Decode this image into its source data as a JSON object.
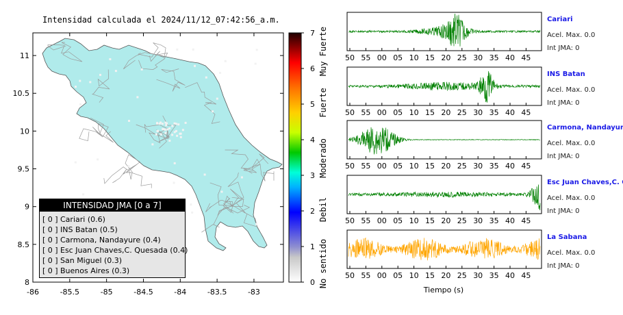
{
  "map": {
    "title": "Intensidad calculada el 2024/11/12_07:42:56_a.m.",
    "x_ticks": [
      "-86",
      "-85.5",
      "-85",
      "-84.5",
      "-84",
      "-83.5",
      "-83"
    ],
    "y_ticks": [
      "11",
      "10.5",
      "10",
      "9.5",
      "9",
      "8.5",
      "8"
    ],
    "land_color": "#b0ebeb",
    "road_color": "#9a9a9a"
  },
  "colorbar": {
    "ticks": [
      "0",
      "1",
      "2",
      "3",
      "4",
      "5",
      "6",
      "7"
    ],
    "labels": [
      "No sentido",
      "Debil",
      "Moderado",
      "Fuerte",
      "Muy Fuerte"
    ]
  },
  "legend": {
    "title": "INTENSIDAD JMA [0 a 7]",
    "rows": [
      {
        "level": "[ 0 ]",
        "name": "Cariari (0.6)"
      },
      {
        "level": "[ 0 ]",
        "name": "INS Batan (0.5)"
      },
      {
        "level": "[ 0 ]",
        "name": "Carmona, Nandayure (0.4)"
      },
      {
        "level": "[ 0 ]",
        "name": "Esc Juan Chaves,C. Quesada (0.4)"
      },
      {
        "level": "[ 0 ]",
        "name": "San Miguel (0.3)"
      },
      {
        "level": "[ 0 ]",
        "name": "Buenos Aires (0.3)"
      }
    ]
  },
  "seismograms": {
    "x_ticks": [
      "50",
      "55",
      "00",
      "05",
      "10",
      "15",
      "20",
      "25",
      "30",
      "35",
      "40",
      "45"
    ],
    "xlabel": "Tiempo (s)",
    "stations": [
      {
        "name": "Cariari",
        "acel": "Acel. Max. 0.0",
        "jma": "Int JMA: 0",
        "color": "#008000"
      },
      {
        "name": "INS Batan",
        "acel": "Acel. Max. 0.0",
        "jma": "Int JMA: 0",
        "color": "#008000"
      },
      {
        "name": "Carmona, Nandayure",
        "acel": "Acel. Max. 0.0",
        "jma": "Int JMA: 0",
        "color": "#008000"
      },
      {
        "name": "Esc Juan Chaves,C. Qu",
        "acel": "Acel. Max. 0.0",
        "jma": "Int JMA: 0",
        "color": "#008000"
      },
      {
        "name": "La Sabana",
        "acel": "Acel. Max. 0.0",
        "jma": "Int JMA: 0",
        "color": "#ffa500"
      }
    ]
  },
  "chart_data": [
    {
      "type": "map",
      "title": "Intensidad calculada el 2024/11/12_07:42:56_a.m.",
      "xlim": [
        -86,
        -82.6
      ],
      "ylim": [
        8,
        11.3
      ],
      "colorbar_range": [
        0,
        7
      ]
    },
    {
      "type": "line",
      "xlabel": "Tiempo (s)",
      "series": [
        {
          "name": "Cariari",
          "peak_time_label": "20-25"
        },
        {
          "name": "INS Batan",
          "peak_time_label": "25-30"
        },
        {
          "name": "Carmona, Nandayure",
          "peak_time_label": "55-05"
        },
        {
          "name": "Esc Juan Chaves,C. Qu",
          "peak_time_label": "45"
        },
        {
          "name": "La Sabana",
          "peak_time_label": "50-45"
        }
      ]
    }
  ]
}
